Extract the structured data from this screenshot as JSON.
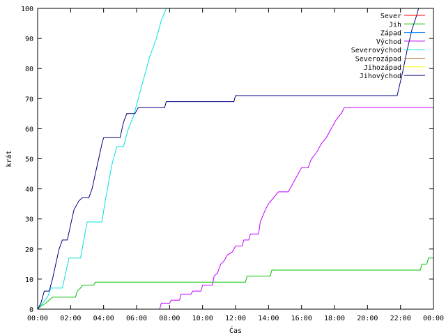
{
  "chart_data": {
    "type": "line",
    "title": "",
    "xlabel": "Čas",
    "ylabel": "krát",
    "xlim": [
      0,
      24
    ],
    "ylim": [
      0,
      100
    ],
    "x_ticks": [
      0,
      2,
      4,
      6,
      8,
      10,
      12,
      14,
      16,
      18,
      20,
      22,
      24
    ],
    "x_tick_labels": [
      "00:00",
      "02:00",
      "04:00",
      "06:00",
      "08:00",
      "10:00",
      "12:00",
      "14:00",
      "16:00",
      "18:00",
      "20:00",
      "22:00",
      "00:00"
    ],
    "y_ticks": [
      0,
      10,
      20,
      30,
      40,
      50,
      60,
      70,
      80,
      90,
      100
    ],
    "y_tick_labels": [
      "0",
      "10",
      "20",
      "30",
      "40",
      "50",
      "60",
      "70",
      "80",
      "90",
      "100"
    ],
    "grid": false,
    "legend_position": "top-right",
    "series": [
      {
        "name": "Sever",
        "color": "#ff0000",
        "points": []
      },
      {
        "name": "Jih",
        "color": "#00c000",
        "points": [
          [
            0.0,
            0
          ],
          [
            0.2,
            1
          ],
          [
            0.5,
            2
          ],
          [
            0.9,
            4
          ],
          [
            2.3,
            4
          ],
          [
            2.4,
            6
          ],
          [
            2.6,
            7
          ],
          [
            2.7,
            8
          ],
          [
            3.4,
            8
          ],
          [
            3.5,
            9
          ],
          [
            12.6,
            9
          ],
          [
            12.7,
            11
          ],
          [
            14.1,
            11
          ],
          [
            14.2,
            13
          ],
          [
            23.2,
            13
          ],
          [
            23.3,
            15
          ],
          [
            23.6,
            15
          ],
          [
            23.7,
            17
          ],
          [
            24.0,
            17
          ]
        ]
      },
      {
        "name": "Západ",
        "color": "#0080ff",
        "points": []
      },
      {
        "name": "Východ",
        "color": "#c000ff",
        "points": [
          [
            7.4,
            0
          ],
          [
            7.5,
            2
          ],
          [
            8.0,
            2
          ],
          [
            8.1,
            3
          ],
          [
            8.6,
            3
          ],
          [
            8.7,
            5
          ],
          [
            9.3,
            5
          ],
          [
            9.4,
            6
          ],
          [
            9.9,
            6
          ],
          [
            10.0,
            8
          ],
          [
            10.6,
            8
          ],
          [
            10.7,
            11
          ],
          [
            10.9,
            12
          ],
          [
            11.1,
            15
          ],
          [
            11.3,
            16
          ],
          [
            11.5,
            18
          ],
          [
            11.8,
            19
          ],
          [
            12.0,
            21
          ],
          [
            12.4,
            21
          ],
          [
            12.5,
            23
          ],
          [
            12.8,
            23
          ],
          [
            12.9,
            25
          ],
          [
            13.4,
            25
          ],
          [
            13.5,
            29
          ],
          [
            13.8,
            33
          ],
          [
            14.0,
            35
          ],
          [
            14.3,
            37
          ],
          [
            14.6,
            39
          ],
          [
            15.2,
            39
          ],
          [
            15.5,
            42
          ],
          [
            15.8,
            45
          ],
          [
            16.0,
            47
          ],
          [
            16.4,
            47
          ],
          [
            16.6,
            50
          ],
          [
            16.9,
            52
          ],
          [
            17.2,
            55
          ],
          [
            17.5,
            57
          ],
          [
            17.8,
            60
          ],
          [
            18.1,
            63
          ],
          [
            18.4,
            65
          ],
          [
            18.6,
            67
          ],
          [
            23.4,
            67
          ],
          [
            24.0,
            67
          ]
        ]
      },
      {
        "name": "Severovýchod",
        "color": "#00e0e0",
        "points": [
          [
            0.0,
            0
          ],
          [
            0.3,
            2
          ],
          [
            0.6,
            4
          ],
          [
            0.8,
            7
          ],
          [
            1.5,
            7
          ],
          [
            1.7,
            12
          ],
          [
            1.9,
            17
          ],
          [
            2.6,
            17
          ],
          [
            2.8,
            23
          ],
          [
            3.0,
            29
          ],
          [
            3.9,
            29
          ],
          [
            4.1,
            36
          ],
          [
            4.3,
            42
          ],
          [
            4.5,
            48
          ],
          [
            4.8,
            54
          ],
          [
            5.2,
            54
          ],
          [
            5.5,
            60
          ],
          [
            5.8,
            64
          ],
          [
            6.1,
            70
          ],
          [
            6.5,
            78
          ],
          [
            6.8,
            84
          ],
          [
            7.2,
            90
          ],
          [
            7.5,
            96
          ],
          [
            7.8,
            100
          ]
        ]
      },
      {
        "name": "Severozápad",
        "color": "#c08040",
        "points": []
      },
      {
        "name": "Jihozápad",
        "color": "#ffff00",
        "points": []
      },
      {
        "name": "Jihovýchod",
        "color": "#000080",
        "points": [
          [
            0.0,
            0
          ],
          [
            0.2,
            2
          ],
          [
            0.4,
            6
          ],
          [
            0.7,
            6
          ],
          [
            0.9,
            10
          ],
          [
            1.1,
            15
          ],
          [
            1.3,
            20
          ],
          [
            1.5,
            23
          ],
          [
            1.8,
            23
          ],
          [
            2.0,
            28
          ],
          [
            2.2,
            33
          ],
          [
            2.5,
            36
          ],
          [
            2.7,
            37
          ],
          [
            3.1,
            37
          ],
          [
            3.3,
            40
          ],
          [
            3.5,
            45
          ],
          [
            3.7,
            50
          ],
          [
            3.9,
            55
          ],
          [
            4.0,
            57
          ],
          [
            5.0,
            57
          ],
          [
            5.2,
            62
          ],
          [
            5.4,
            65
          ],
          [
            5.9,
            65
          ],
          [
            6.1,
            67
          ],
          [
            7.7,
            67
          ],
          [
            7.8,
            69
          ],
          [
            11.9,
            69
          ],
          [
            12.0,
            71
          ],
          [
            21.8,
            71
          ],
          [
            22.1,
            78
          ],
          [
            22.4,
            86
          ],
          [
            22.7,
            93
          ],
          [
            23.0,
            98
          ],
          [
            23.1,
            100
          ]
        ]
      }
    ]
  }
}
